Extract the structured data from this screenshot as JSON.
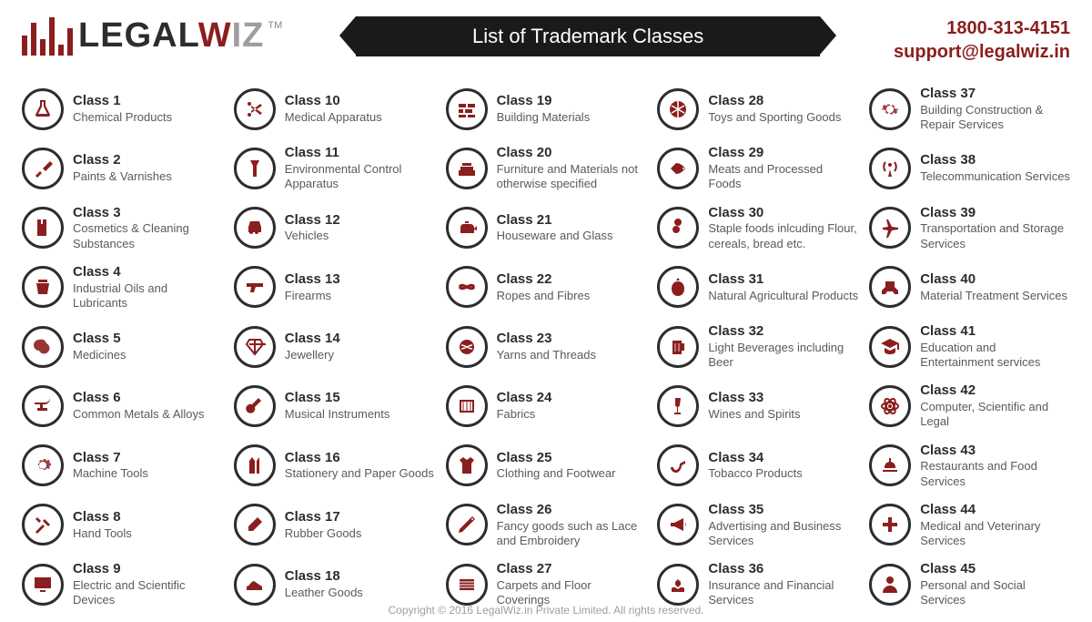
{
  "brand": {
    "name_part1": "L",
    "name_part2": "EGAL",
    "name_part3": "W",
    "name_part4": "IZ",
    "tm": "TM",
    "bar_color": "#8b1e1e",
    "bar_heights": [
      22,
      36,
      18,
      42,
      12,
      30
    ]
  },
  "title": "List of Trademark Classes",
  "contact": {
    "phone": "1800-313-4151",
    "email": "support@legalwiz.in"
  },
  "footer": "Copyright © 2016 LegalWiz.in Private Limited. All rights reserved.",
  "colors": {
    "accent": "#8b1e1e",
    "text_dark": "#2d2d2d",
    "text_grey": "#5a5a5a",
    "icon_border": "#2d2d2d",
    "title_bg": "#1a1a1a",
    "background": "#ffffff"
  },
  "layout": {
    "columns": 5,
    "rows": 9,
    "total_classes": 45
  },
  "classes": [
    {
      "num": 1,
      "label": "Class 1",
      "desc": "Chemical Products",
      "icon": "flask"
    },
    {
      "num": 2,
      "label": "Class 2",
      "desc": "Paints & Varnishes",
      "icon": "brush"
    },
    {
      "num": 3,
      "label": "Class 3",
      "desc": "Cosmetics & Cleaning Substances",
      "icon": "cosmetics"
    },
    {
      "num": 4,
      "label": "Class 4",
      "desc": "Industrial Oils and Lubricants",
      "icon": "oil"
    },
    {
      "num": 5,
      "label": "Class 5",
      "desc": "Medicines",
      "icon": "pill"
    },
    {
      "num": 6,
      "label": "Class 6",
      "desc": "Common Metals & Alloys",
      "icon": "anvil"
    },
    {
      "num": 7,
      "label": "Class 7",
      "desc": "Machine Tools",
      "icon": "gears"
    },
    {
      "num": 8,
      "label": "Class 8",
      "desc": "Hand Tools",
      "icon": "tools"
    },
    {
      "num": 9,
      "label": "Class 9",
      "desc": "Electric and Scientific Devices",
      "icon": "monitor"
    },
    {
      "num": 10,
      "label": "Class 10",
      "desc": "Medical Apparatus",
      "icon": "scissors"
    },
    {
      "num": 11,
      "label": "Class 11",
      "desc": "Environmental Control Apparatus",
      "icon": "flashlight"
    },
    {
      "num": 12,
      "label": "Class 12",
      "desc": "Vehicles",
      "icon": "car"
    },
    {
      "num": 13,
      "label": "Class 13",
      "desc": "Firearms",
      "icon": "gun"
    },
    {
      "num": 14,
      "label": "Class 14",
      "desc": "Jewellery",
      "icon": "diamond"
    },
    {
      "num": 15,
      "label": "Class 15",
      "desc": "Musical Instruments",
      "icon": "guitar"
    },
    {
      "num": 16,
      "label": "Class 16",
      "desc": "Stationery and Paper Goods",
      "icon": "pencils"
    },
    {
      "num": 17,
      "label": "Class 17",
      "desc": "Rubber Goods",
      "icon": "eraser"
    },
    {
      "num": 18,
      "label": "Class 18",
      "desc": "Leather Goods",
      "icon": "shoe"
    },
    {
      "num": 19,
      "label": "Class 19",
      "desc": "Building Materials",
      "icon": "bricks"
    },
    {
      "num": 20,
      "label": "Class 20",
      "desc": "Furniture and Materials not otherwise specified",
      "icon": "sofa"
    },
    {
      "num": 21,
      "label": "Class 21",
      "desc": "Houseware and Glass",
      "icon": "teapot"
    },
    {
      "num": 22,
      "label": "Class 22",
      "desc": "Ropes and Fibres",
      "icon": "rope"
    },
    {
      "num": 23,
      "label": "Class 23",
      "desc": "Yarns and Threads",
      "icon": "yarn"
    },
    {
      "num": 24,
      "label": "Class 24",
      "desc": "Fabrics",
      "icon": "fabric"
    },
    {
      "num": 25,
      "label": "Class 25",
      "desc": "Clothing and Footwear",
      "icon": "shirt"
    },
    {
      "num": 26,
      "label": "Class 26",
      "desc": "Fancy goods such as Lace and Embroidery",
      "icon": "needle"
    },
    {
      "num": 27,
      "label": "Class 27",
      "desc": "Carpets and Floor Coverings",
      "icon": "carpet"
    },
    {
      "num": 28,
      "label": "Class 28",
      "desc": "Toys and Sporting Goods",
      "icon": "ball"
    },
    {
      "num": 29,
      "label": "Class 29",
      "desc": "Meats and Processed Foods",
      "icon": "fish"
    },
    {
      "num": 30,
      "label": "Class 30",
      "desc": "Staple foods inlcuding Flour, cereals, bread etc.",
      "icon": "coffee"
    },
    {
      "num": 31,
      "label": "Class 31",
      "desc": "Natural Agricultural Products",
      "icon": "apple"
    },
    {
      "num": 32,
      "label": "Class 32",
      "desc": "Light Beverages including Beer",
      "icon": "beer"
    },
    {
      "num": 33,
      "label": "Class 33",
      "desc": "Wines and Spirits",
      "icon": "wine"
    },
    {
      "num": 34,
      "label": "Class 34",
      "desc": "Tobacco Products",
      "icon": "pipe"
    },
    {
      "num": 35,
      "label": "Class 35",
      "desc": "Advertising and Business Services",
      "icon": "megaphone"
    },
    {
      "num": 36,
      "label": "Class 36",
      "desc": "Insurance and Financial Services",
      "icon": "hands"
    },
    {
      "num": 37,
      "label": "Class 37",
      "desc": "Building Construction & Repair Services",
      "icon": "gear"
    },
    {
      "num": 38,
      "label": "Class 38",
      "desc": "Telecommunication Services",
      "icon": "antenna"
    },
    {
      "num": 39,
      "label": "Class 39",
      "desc": "Transportation and Storage Services",
      "icon": "plane"
    },
    {
      "num": 40,
      "label": "Class 40",
      "desc": "Material Treatment Services",
      "icon": "robot"
    },
    {
      "num": 41,
      "label": "Class 41",
      "desc": "Education and Entertainment services",
      "icon": "graduation"
    },
    {
      "num": 42,
      "label": "Class 42",
      "desc": "Computer, Scientific and Legal",
      "icon": "atom"
    },
    {
      "num": 43,
      "label": "Class 43",
      "desc": "Restaurants and Food Services",
      "icon": "food"
    },
    {
      "num": 44,
      "label": "Class 44",
      "desc": "Medical and Veterinary Services",
      "icon": "cross"
    },
    {
      "num": 45,
      "label": "Class 45",
      "desc": "Personal and Social Services",
      "icon": "person"
    }
  ]
}
